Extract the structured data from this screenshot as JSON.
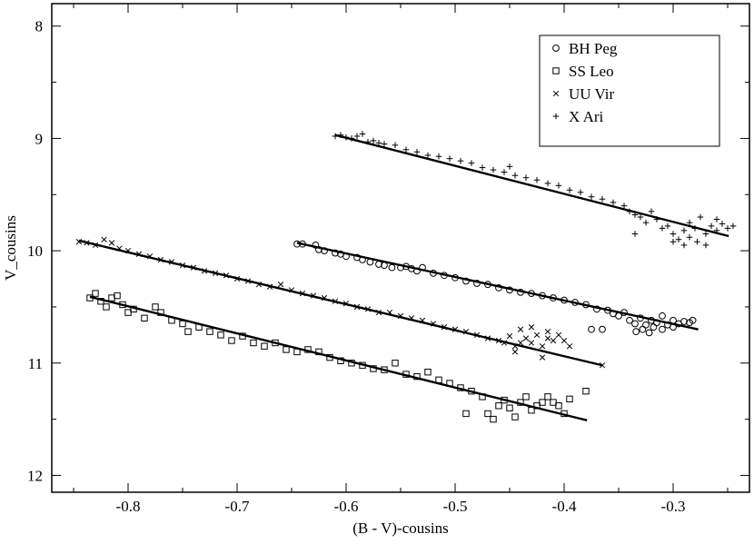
{
  "chart_data": {
    "type": "scatter",
    "title": "",
    "xlabel": "(B - V)-cousins",
    "ylabel": "V_cousins",
    "xlim": [
      -0.87,
      -0.23
    ],
    "ylim": [
      12.15,
      7.8
    ],
    "y_inverted": true,
    "grid": false,
    "legend_position": "top-right",
    "x_ticks": [
      -0.8,
      -0.7,
      -0.6,
      -0.5,
      -0.4,
      -0.3
    ],
    "x_tick_labels": [
      "-0.8",
      "-0.7",
      "-0.6",
      "-0.5",
      "-0.4",
      "-0.3"
    ],
    "y_ticks": [
      8,
      9,
      10,
      11,
      12
    ],
    "y_tick_labels": [
      "8",
      "9",
      "10",
      "11",
      "12"
    ],
    "series": [
      {
        "name": "BH Peg",
        "marker": "circle",
        "x_range": [
          -0.645,
          -0.28
        ],
        "fit_line": {
          "x": [
            -0.645,
            -0.277
          ],
          "y": [
            9.93,
            10.7
          ]
        },
        "points": [
          [
            -0.645,
            9.94
          ],
          [
            -0.64,
            9.94
          ],
          [
            -0.628,
            9.95
          ],
          [
            -0.625,
            9.99
          ],
          [
            -0.62,
            10.0
          ],
          [
            -0.61,
            10.02
          ],
          [
            -0.605,
            10.03
          ],
          [
            -0.6,
            10.05
          ],
          [
            -0.59,
            10.06
          ],
          [
            -0.585,
            10.08
          ],
          [
            -0.578,
            10.1
          ],
          [
            -0.57,
            10.12
          ],
          [
            -0.565,
            10.13
          ],
          [
            -0.558,
            10.15
          ],
          [
            -0.55,
            10.15
          ],
          [
            -0.545,
            10.14
          ],
          [
            -0.54,
            10.16
          ],
          [
            -0.535,
            10.18
          ],
          [
            -0.53,
            10.15
          ],
          [
            -0.52,
            10.2
          ],
          [
            -0.51,
            10.22
          ],
          [
            -0.5,
            10.24
          ],
          [
            -0.49,
            10.27
          ],
          [
            -0.48,
            10.29
          ],
          [
            -0.47,
            10.3
          ],
          [
            -0.46,
            10.33
          ],
          [
            -0.45,
            10.35
          ],
          [
            -0.44,
            10.37
          ],
          [
            -0.43,
            10.38
          ],
          [
            -0.42,
            10.4
          ],
          [
            -0.41,
            10.42
          ],
          [
            -0.4,
            10.44
          ],
          [
            -0.39,
            10.46
          ],
          [
            -0.38,
            10.48
          ],
          [
            -0.375,
            10.7
          ],
          [
            -0.37,
            10.52
          ],
          [
            -0.365,
            10.7
          ],
          [
            -0.36,
            10.53
          ],
          [
            -0.355,
            10.56
          ],
          [
            -0.35,
            10.58
          ],
          [
            -0.345,
            10.55
          ],
          [
            -0.34,
            10.62
          ],
          [
            -0.335,
            10.65
          ],
          [
            -0.33,
            10.6
          ],
          [
            -0.328,
            10.7
          ],
          [
            -0.325,
            10.66
          ],
          [
            -0.322,
            10.73
          ],
          [
            -0.32,
            10.62
          ],
          [
            -0.318,
            10.68
          ],
          [
            -0.315,
            10.64
          ],
          [
            -0.31,
            10.58
          ],
          [
            -0.305,
            10.66
          ],
          [
            -0.3,
            10.62
          ],
          [
            -0.295,
            10.65
          ],
          [
            -0.29,
            10.63
          ],
          [
            -0.285,
            10.64
          ],
          [
            -0.282,
            10.62
          ],
          [
            -0.3,
            10.68
          ],
          [
            -0.31,
            10.7
          ],
          [
            -0.334,
            10.72
          ]
        ]
      },
      {
        "name": "SS Leo",
        "marker": "square",
        "x_range": [
          -0.835,
          -0.38
        ],
        "fit_line": {
          "x": [
            -0.835,
            -0.379
          ],
          "y": [
            10.41,
            11.51
          ]
        },
        "points": [
          [
            -0.835,
            10.42
          ],
          [
            -0.83,
            10.38
          ],
          [
            -0.825,
            10.45
          ],
          [
            -0.82,
            10.5
          ],
          [
            -0.815,
            10.42
          ],
          [
            -0.81,
            10.4
          ],
          [
            -0.805,
            10.48
          ],
          [
            -0.8,
            10.55
          ],
          [
            -0.795,
            10.52
          ],
          [
            -0.785,
            10.6
          ],
          [
            -0.775,
            10.5
          ],
          [
            -0.77,
            10.55
          ],
          [
            -0.76,
            10.62
          ],
          [
            -0.75,
            10.65
          ],
          [
            -0.745,
            10.72
          ],
          [
            -0.735,
            10.68
          ],
          [
            -0.725,
            10.72
          ],
          [
            -0.715,
            10.75
          ],
          [
            -0.705,
            10.8
          ],
          [
            -0.695,
            10.76
          ],
          [
            -0.685,
            10.82
          ],
          [
            -0.675,
            10.85
          ],
          [
            -0.665,
            10.82
          ],
          [
            -0.655,
            10.88
          ],
          [
            -0.645,
            10.9
          ],
          [
            -0.635,
            10.88
          ],
          [
            -0.625,
            10.9
          ],
          [
            -0.615,
            10.95
          ],
          [
            -0.605,
            10.98
          ],
          [
            -0.595,
            11.0
          ],
          [
            -0.585,
            11.02
          ],
          [
            -0.575,
            11.05
          ],
          [
            -0.565,
            11.06
          ],
          [
            -0.555,
            11.0
          ],
          [
            -0.545,
            11.1
          ],
          [
            -0.535,
            11.12
          ],
          [
            -0.525,
            11.08
          ],
          [
            -0.515,
            11.15
          ],
          [
            -0.505,
            11.18
          ],
          [
            -0.495,
            11.22
          ],
          [
            -0.485,
            11.25
          ],
          [
            -0.475,
            11.3
          ],
          [
            -0.47,
            11.45
          ],
          [
            -0.465,
            11.5
          ],
          [
            -0.46,
            11.38
          ],
          [
            -0.455,
            11.33
          ],
          [
            -0.45,
            11.4
          ],
          [
            -0.445,
            11.48
          ],
          [
            -0.44,
            11.35
          ],
          [
            -0.435,
            11.3
          ],
          [
            -0.43,
            11.42
          ],
          [
            -0.425,
            11.38
          ],
          [
            -0.42,
            11.35
          ],
          [
            -0.415,
            11.3
          ],
          [
            -0.41,
            11.35
          ],
          [
            -0.405,
            11.38
          ],
          [
            -0.4,
            11.45
          ],
          [
            -0.395,
            11.32
          ],
          [
            -0.38,
            11.25
          ],
          [
            -0.49,
            11.45
          ]
        ]
      },
      {
        "name": "UU Vir",
        "marker": "x",
        "x_range": [
          -0.845,
          -0.365
        ],
        "fit_line": {
          "x": [
            -0.845,
            -0.365
          ],
          "y": [
            9.91,
            11.02
          ]
        },
        "points": [
          [
            -0.845,
            9.92
          ],
          [
            -0.838,
            9.93
          ],
          [
            -0.83,
            9.95
          ],
          [
            -0.822,
            9.9
          ],
          [
            -0.815,
            9.93
          ],
          [
            -0.808,
            9.98
          ],
          [
            -0.8,
            10.0
          ],
          [
            -0.79,
            10.03
          ],
          [
            -0.78,
            10.05
          ],
          [
            -0.77,
            10.08
          ],
          [
            -0.76,
            10.1
          ],
          [
            -0.75,
            10.13
          ],
          [
            -0.74,
            10.15
          ],
          [
            -0.73,
            10.18
          ],
          [
            -0.72,
            10.2
          ],
          [
            -0.71,
            10.22
          ],
          [
            -0.7,
            10.25
          ],
          [
            -0.69,
            10.27
          ],
          [
            -0.68,
            10.3
          ],
          [
            -0.67,
            10.32
          ],
          [
            -0.66,
            10.3
          ],
          [
            -0.65,
            10.35
          ],
          [
            -0.64,
            10.38
          ],
          [
            -0.63,
            10.4
          ],
          [
            -0.62,
            10.42
          ],
          [
            -0.61,
            10.45
          ],
          [
            -0.6,
            10.47
          ],
          [
            -0.59,
            10.5
          ],
          [
            -0.58,
            10.52
          ],
          [
            -0.57,
            10.55
          ],
          [
            -0.56,
            10.55
          ],
          [
            -0.55,
            10.58
          ],
          [
            -0.54,
            10.6
          ],
          [
            -0.53,
            10.62
          ],
          [
            -0.52,
            10.65
          ],
          [
            -0.51,
            10.68
          ],
          [
            -0.5,
            10.7
          ],
          [
            -0.49,
            10.72
          ],
          [
            -0.48,
            10.75
          ],
          [
            -0.47,
            10.78
          ],
          [
            -0.46,
            10.8
          ],
          [
            -0.455,
            10.82
          ],
          [
            -0.45,
            10.76
          ],
          [
            -0.445,
            10.85
          ],
          [
            -0.44,
            10.7
          ],
          [
            -0.435,
            10.78
          ],
          [
            -0.43,
            10.82
          ],
          [
            -0.425,
            10.75
          ],
          [
            -0.42,
            10.85
          ],
          [
            -0.415,
            10.78
          ],
          [
            -0.41,
            10.8
          ],
          [
            -0.405,
            10.75
          ],
          [
            -0.4,
            10.8
          ],
          [
            -0.395,
            10.85
          ],
          [
            -0.365,
            11.02
          ],
          [
            -0.445,
            10.9
          ],
          [
            -0.42,
            10.95
          ],
          [
            -0.43,
            10.68
          ],
          [
            -0.415,
            10.72
          ],
          [
            -0.44,
            10.82
          ]
        ]
      },
      {
        "name": "X Ari",
        "marker": "plus",
        "x_range": [
          -0.61,
          -0.245
        ],
        "fit_line": {
          "x": [
            -0.61,
            -0.249
          ],
          "y": [
            8.97,
            9.87
          ]
        },
        "points": [
          [
            -0.61,
            8.98
          ],
          [
            -0.605,
            8.97
          ],
          [
            -0.6,
            8.99
          ],
          [
            -0.595,
            9.0
          ],
          [
            -0.59,
            8.98
          ],
          [
            -0.585,
            8.96
          ],
          [
            -0.58,
            9.03
          ],
          [
            -0.575,
            9.02
          ],
          [
            -0.57,
            9.04
          ],
          [
            -0.565,
            9.05
          ],
          [
            -0.555,
            9.06
          ],
          [
            -0.545,
            9.1
          ],
          [
            -0.535,
            9.12
          ],
          [
            -0.525,
            9.15
          ],
          [
            -0.515,
            9.16
          ],
          [
            -0.505,
            9.18
          ],
          [
            -0.495,
            9.2
          ],
          [
            -0.485,
            9.22
          ],
          [
            -0.475,
            9.26
          ],
          [
            -0.465,
            9.28
          ],
          [
            -0.455,
            9.3
          ],
          [
            -0.445,
            9.33
          ],
          [
            -0.435,
            9.35
          ],
          [
            -0.425,
            9.37
          ],
          [
            -0.415,
            9.4
          ],
          [
            -0.405,
            9.42
          ],
          [
            -0.395,
            9.46
          ],
          [
            -0.385,
            9.48
          ],
          [
            -0.375,
            9.52
          ],
          [
            -0.365,
            9.54
          ],
          [
            -0.355,
            9.57
          ],
          [
            -0.345,
            9.6
          ],
          [
            -0.34,
            9.65
          ],
          [
            -0.335,
            9.68
          ],
          [
            -0.33,
            9.7
          ],
          [
            -0.325,
            9.75
          ],
          [
            -0.32,
            9.65
          ],
          [
            -0.315,
            9.72
          ],
          [
            -0.31,
            9.8
          ],
          [
            -0.305,
            9.78
          ],
          [
            -0.3,
            9.85
          ],
          [
            -0.295,
            9.9
          ],
          [
            -0.29,
            9.82
          ],
          [
            -0.285,
            9.75
          ],
          [
            -0.28,
            9.8
          ],
          [
            -0.275,
            9.7
          ],
          [
            -0.27,
            9.85
          ],
          [
            -0.265,
            9.78
          ],
          [
            -0.26,
            9.82
          ],
          [
            -0.255,
            9.76
          ],
          [
            -0.25,
            9.8
          ],
          [
            -0.245,
            9.78
          ],
          [
            -0.335,
            9.85
          ],
          [
            -0.278,
            9.92
          ],
          [
            -0.29,
            9.95
          ],
          [
            -0.3,
            9.92
          ],
          [
            -0.27,
            9.95
          ],
          [
            -0.285,
            9.88
          ],
          [
            -0.26,
            9.72
          ],
          [
            -0.45,
            9.25
          ]
        ]
      }
    ]
  }
}
